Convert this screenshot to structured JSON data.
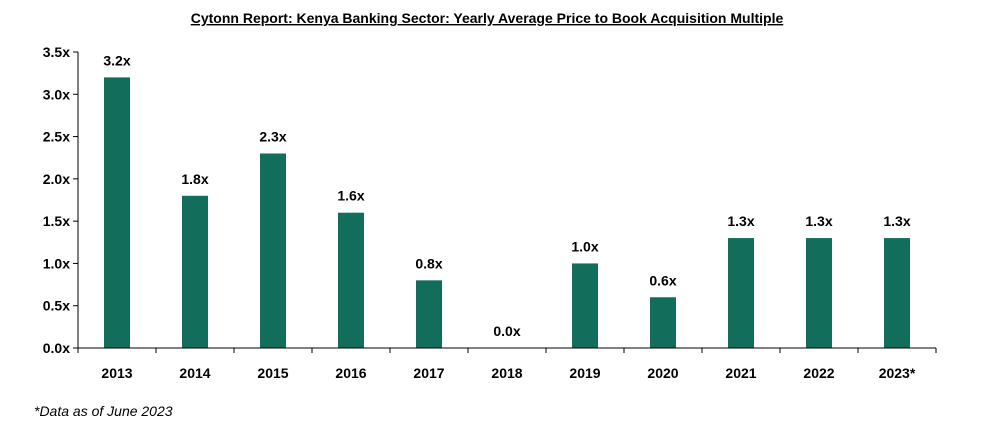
{
  "chart_data": {
    "type": "bar",
    "title": "Cytonn Report: Kenya Banking Sector: Yearly Average Price to Book Acquisition Multiple",
    "categories": [
      "2013",
      "2014",
      "2015",
      "2016",
      "2017",
      "2018",
      "2019",
      "2020",
      "2021",
      "2022",
      "2023*"
    ],
    "values": [
      3.2,
      1.8,
      2.3,
      1.6,
      0.8,
      0.0,
      1.0,
      0.6,
      1.3,
      1.3,
      1.3
    ],
    "data_labels": [
      "3.2x",
      "1.8x",
      "2.3x",
      "1.6x",
      "0.8x",
      "0.0x",
      "1.0x",
      "0.6x",
      "1.3x",
      "1.3x",
      "1.3x"
    ],
    "y_ticks": [
      0,
      0.5,
      1.0,
      1.5,
      2.0,
      2.5,
      3.0,
      3.5
    ],
    "y_tick_labels": [
      "0.0x",
      "0.5x",
      "1.0x",
      "1.5x",
      "2.0x",
      "2.5x",
      "3.0x",
      "3.5x"
    ],
    "ylim": [
      0,
      3.5
    ],
    "xlabel": "",
    "ylabel": "",
    "grid": false,
    "bar_color": "#126E5B"
  },
  "footnote": "*Data as of June 2023"
}
